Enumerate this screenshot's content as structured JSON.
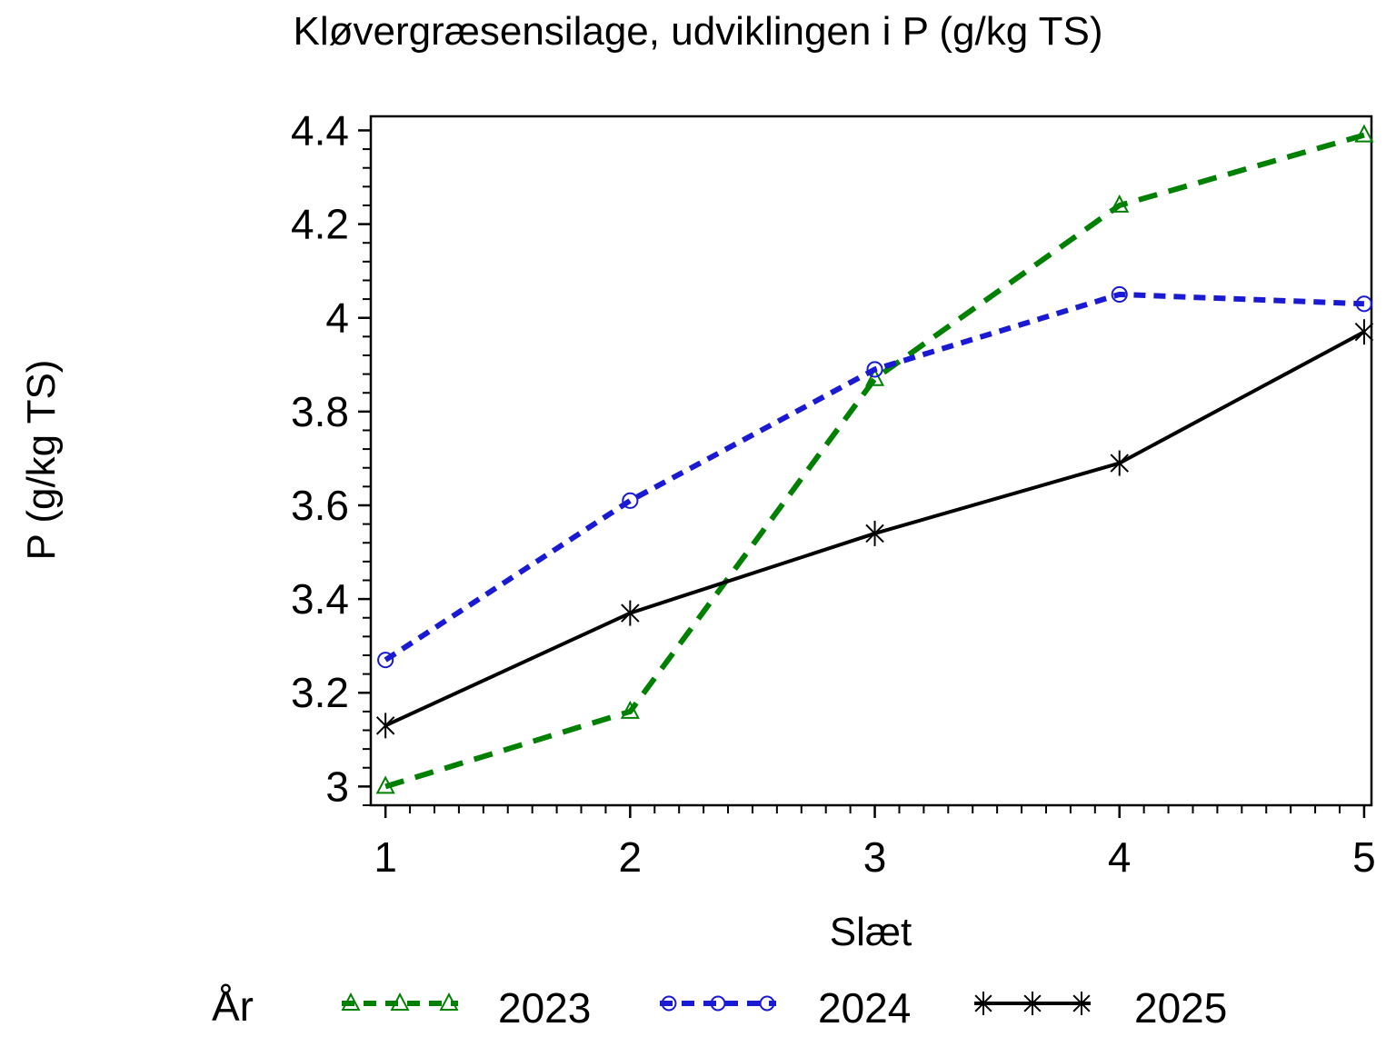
{
  "chart_data": {
    "type": "line",
    "title": "Kløvergræsensilage, udviklingen i P (g/kg TS)",
    "xlabel": "Slæt",
    "ylabel": "P (g/kg TS)",
    "legend_title": "År",
    "legend_position": "bottom",
    "grid": false,
    "background": "#ffffff",
    "axis_color": "#000000",
    "x": [
      1,
      2,
      3,
      4,
      5
    ],
    "x_tick_labels": [
      "1",
      "2",
      "3",
      "4",
      "5"
    ],
    "y_major_ticks": [
      3.0,
      3.2,
      3.4,
      3.6,
      3.8,
      4.0,
      4.2,
      4.4
    ],
    "y_tick_labels": [
      "3",
      "3.2",
      "3.4",
      "3.6",
      "3.8",
      "4",
      "4.2",
      "4.4"
    ],
    "x_minor_step": 0.1,
    "y_minor_step": 0.04,
    "xlim": [
      0.94,
      5.03
    ],
    "ylim": [
      2.96,
      4.43
    ],
    "series": [
      {
        "name": "2023",
        "color": "#008000",
        "line_style": "dashed",
        "dasharray": "21 13",
        "marker": "triangle",
        "values": [
          3.0,
          3.16,
          3.87,
          4.24,
          4.39
        ]
      },
      {
        "name": "2024",
        "color": "#1a1ad2",
        "line_style": "dashed",
        "dasharray": "13 9",
        "marker": "circle",
        "values": [
          3.27,
          3.61,
          3.89,
          4.05,
          4.03
        ]
      },
      {
        "name": "2025",
        "color": "#000000",
        "line_style": "solid",
        "dasharray": "",
        "marker": "star",
        "values": [
          3.13,
          3.37,
          3.54,
          3.69,
          3.97
        ]
      }
    ]
  }
}
